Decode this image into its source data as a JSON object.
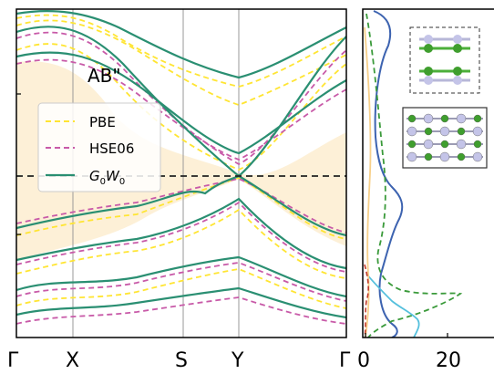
{
  "chart_data": [
    {
      "type": "line",
      "title": "AB\"",
      "xlabel": "",
      "ylabel": "",
      "x": [
        "Γ",
        "X",
        "S",
        "Y",
        "Γ"
      ],
      "fermi_level_line": "dashed black horizontal line",
      "gap_shading_color": "#fdf0d7",
      "legend": {
        "position": "center-left",
        "entries": [
          "PBE",
          "HSE06",
          "G0W0"
        ]
      },
      "series": [
        {
          "name": "PBE",
          "style": "dashed",
          "color": "#ffe533"
        },
        {
          "name": "HSE06",
          "style": "dashed",
          "color": "#c85aa8"
        },
        {
          "name": "G0W0",
          "style": "solid",
          "color": "#2a8f72"
        }
      ],
      "series_name_display": {
        "G0W0": [
          "G",
          "0",
          "W",
          "0"
        ]
      }
    },
    {
      "type": "line",
      "title": "",
      "xlabel": "",
      "ylabel": "",
      "x_ticks": [
        0,
        20
      ],
      "xlim": [
        0,
        30
      ],
      "series": [
        {
          "name": "",
          "color": "#3d63b0"
        },
        {
          "name": "",
          "color": "#3a9a3a"
        },
        {
          "name": "",
          "color": "#55c0dd"
        },
        {
          "name": "",
          "color": "#f7d08a"
        },
        {
          "name": "",
          "color": "#c0392b"
        }
      ]
    }
  ],
  "legend_text": {
    "pbe": "PBE",
    "hse": "HSE06",
    "gw_main1": "G",
    "gw_sub1": "0",
    "gw_main2": "W",
    "gw_sub2": "0"
  },
  "panel_title": "AB\"",
  "k_labels": {
    "gamma1": "Γ",
    "x": "X",
    "s": "S",
    "y": "Y",
    "gamma2": "Γ"
  },
  "dos_tick_labels": {
    "t0": "0",
    "t20": "20"
  }
}
